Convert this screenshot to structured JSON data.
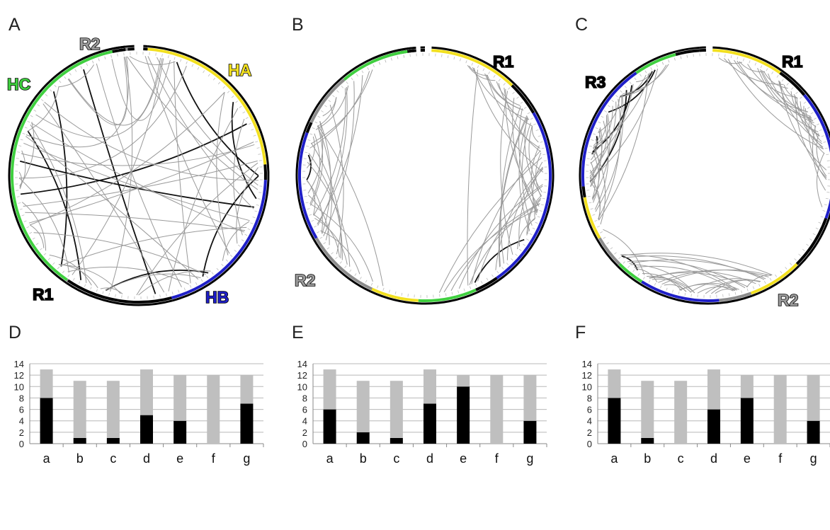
{
  "panel_letters": [
    "A",
    "B",
    "C",
    "D",
    "E",
    "F"
  ],
  "circos": [
    {
      "id": "A",
      "segments": [
        {
          "label": "R2",
          "color": "#8c8c8c"
        },
        {
          "label": "HA",
          "color": "#f2e020"
        },
        {
          "label": "HB",
          "color": "#1f1fc8"
        },
        {
          "label": "R1",
          "color": "#000000"
        },
        {
          "label": "HC",
          "color": "#40d040"
        }
      ]
    },
    {
      "id": "B",
      "segments": [
        {
          "label": "R1",
          "color": "#000000"
        },
        {
          "label": "R2",
          "color": "#8c8c8c"
        }
      ]
    },
    {
      "id": "C",
      "segments": [
        {
          "label": "R3",
          "color": "#000000"
        },
        {
          "label": "R1",
          "color": "#000000"
        },
        {
          "label": "R2",
          "color": "#8c8c8c"
        }
      ]
    }
  ],
  "chart_data": [
    {
      "type": "bar",
      "panel": "D",
      "stacked": true,
      "categories": [
        "a",
        "b",
        "c",
        "d",
        "e",
        "f",
        "g"
      ],
      "series": [
        {
          "values": [
            8,
            1,
            1,
            5,
            4,
            0,
            7
          ],
          "color": "#000000"
        },
        {
          "values": [
            5,
            10,
            10,
            8,
            8,
            12,
            5
          ],
          "color": "#bfbfbf"
        }
      ],
      "totals": [
        13,
        11,
        11,
        13,
        12,
        12,
        12
      ],
      "yticks": [
        0,
        2,
        4,
        6,
        8,
        10,
        12,
        14
      ],
      "ylim": [
        0,
        14
      ],
      "grid": true
    },
    {
      "type": "bar",
      "panel": "E",
      "stacked": true,
      "categories": [
        "a",
        "b",
        "c",
        "d",
        "e",
        "f",
        "g"
      ],
      "series": [
        {
          "values": [
            6,
            2,
            1,
            7,
            10,
            0,
            4
          ],
          "color": "#000000"
        },
        {
          "values": [
            7,
            9,
            10,
            6,
            2,
            12,
            8
          ],
          "color": "#bfbfbf"
        }
      ],
      "totals": [
        13,
        11,
        11,
        13,
        12,
        12,
        12
      ],
      "yticks": [
        0,
        2,
        4,
        6,
        8,
        10,
        12,
        14
      ],
      "ylim": [
        0,
        14
      ],
      "grid": true
    },
    {
      "type": "bar",
      "panel": "F",
      "stacked": true,
      "categories": [
        "a",
        "b",
        "c",
        "d",
        "e",
        "f",
        "g"
      ],
      "series": [
        {
          "values": [
            8,
            1,
            0,
            6,
            8,
            0,
            4
          ],
          "color": "#000000"
        },
        {
          "values": [
            5,
            10,
            11,
            7,
            4,
            12,
            8
          ],
          "color": "#bfbfbf"
        }
      ],
      "totals": [
        13,
        11,
        11,
        13,
        12,
        12,
        12
      ],
      "yticks": [
        0,
        2,
        4,
        6,
        8,
        10,
        12,
        14
      ],
      "ylim": [
        0,
        14
      ],
      "grid": true
    }
  ]
}
